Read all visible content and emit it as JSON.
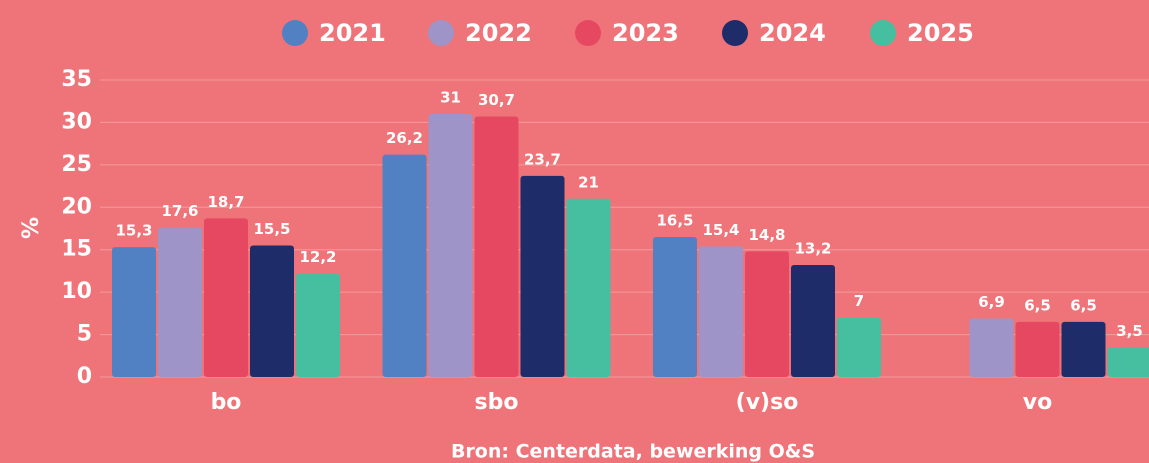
{
  "chart_data": {
    "type": "bar",
    "categories": [
      "bo",
      "sbo",
      "(v)so",
      "vo"
    ],
    "series": [
      {
        "name": "2021",
        "color": "#5181c3",
        "values": [
          15.3,
          26.2,
          16.5,
          null
        ],
        "value_labels": [
          "15,3",
          "26,2",
          "16,5",
          null
        ]
      },
      {
        "name": "2022",
        "color": "#9e94c7",
        "values": [
          17.6,
          31,
          15.4,
          6.9
        ],
        "value_labels": [
          "17,6",
          "31",
          "15,4",
          "6,9"
        ]
      },
      {
        "name": "2023",
        "color": "#e64862",
        "values": [
          18.7,
          30.7,
          14.8,
          6.5
        ],
        "value_labels": [
          "18,7",
          "30,7",
          "14,8",
          "6,5"
        ]
      },
      {
        "name": "2024",
        "color": "#1e2d69",
        "values": [
          15.5,
          23.7,
          13.2,
          6.5
        ],
        "value_labels": [
          "15,5",
          "23,7",
          "13,2",
          "6,5"
        ]
      },
      {
        "name": "2025",
        "color": "#46bfa0",
        "values": [
          12.2,
          21,
          7,
          3.5
        ],
        "value_labels": [
          "12,2",
          "21",
          "7",
          "3,5"
        ]
      }
    ],
    "y_label": "%",
    "ylim": [
      0,
      35
    ],
    "yticks": [
      0,
      5,
      10,
      15,
      20,
      25,
      30,
      35
    ],
    "grid": true,
    "legend": "top",
    "source": "Bron: Centerdata, bewerking O&S"
  }
}
